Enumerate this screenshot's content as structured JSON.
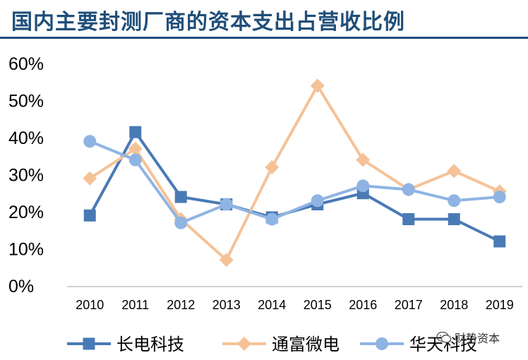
{
  "header": {
    "title": "国内主要封测厂商的资本支出占营收比例"
  },
  "watermark": {
    "text": "财势资本"
  },
  "colors": {
    "title": "#1f4e79",
    "axis": "#bfbfbf",
    "text": "#000000"
  },
  "chart_data": {
    "type": "line",
    "title": "国内主要封测厂商的资本支出占营收比例",
    "xlabel": "",
    "ylabel": "",
    "x": [
      "2010",
      "2011",
      "2012",
      "2013",
      "2014",
      "2015",
      "2016",
      "2017",
      "2018",
      "2019"
    ],
    "ylim": [
      0,
      60
    ],
    "yticks": [
      "0%",
      "10%",
      "20%",
      "30%",
      "40%",
      "50%",
      "60%"
    ],
    "grid": false,
    "legend": "bottom",
    "series": [
      {
        "name": "长电科技",
        "color": "#4a7ab5",
        "marker": "square",
        "values": [
          19,
          41.5,
          24,
          22,
          18.5,
          22,
          25,
          18,
          18,
          12
        ]
      },
      {
        "name": "通富微电",
        "color": "#f5c298",
        "marker": "diamond",
        "values": [
          29,
          37,
          18,
          7,
          32,
          54,
          34,
          26,
          31,
          25.5
        ]
      },
      {
        "name": "华天科技",
        "color": "#8fb4e3",
        "marker": "circle",
        "values": [
          39,
          34,
          17,
          22,
          18,
          23,
          27,
          26,
          23,
          24
        ]
      }
    ]
  }
}
